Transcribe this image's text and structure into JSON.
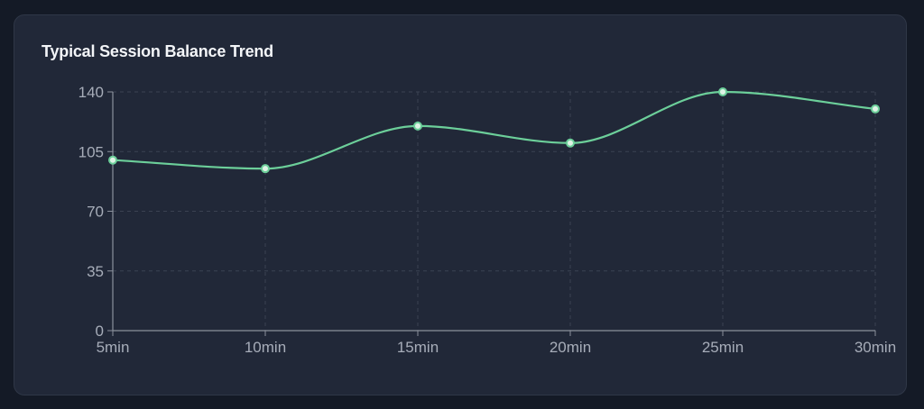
{
  "card": {
    "title": "Typical Session Balance Trend"
  },
  "colors": {
    "page_background": "#141a26",
    "card_background": "#212838",
    "line": "#6ccf9a",
    "point_fill": "#dff3e6",
    "grid": "#3a4252",
    "axis": "#8b919c",
    "tick_text": "#a7adb9"
  },
  "chart_data": {
    "type": "line",
    "title": "Typical Session Balance Trend",
    "xlabel": "",
    "ylabel": "",
    "categories": [
      "5min",
      "10min",
      "15min",
      "20min",
      "25min",
      "30min"
    ],
    "series": [
      {
        "values": [
          100,
          95,
          120,
          110,
          140,
          130
        ]
      }
    ],
    "ylim": [
      0,
      140
    ],
    "yticks": [
      0,
      35,
      70,
      105,
      140
    ],
    "grid": true,
    "grid_style": "dashed",
    "smooth": true,
    "legend": "none"
  }
}
